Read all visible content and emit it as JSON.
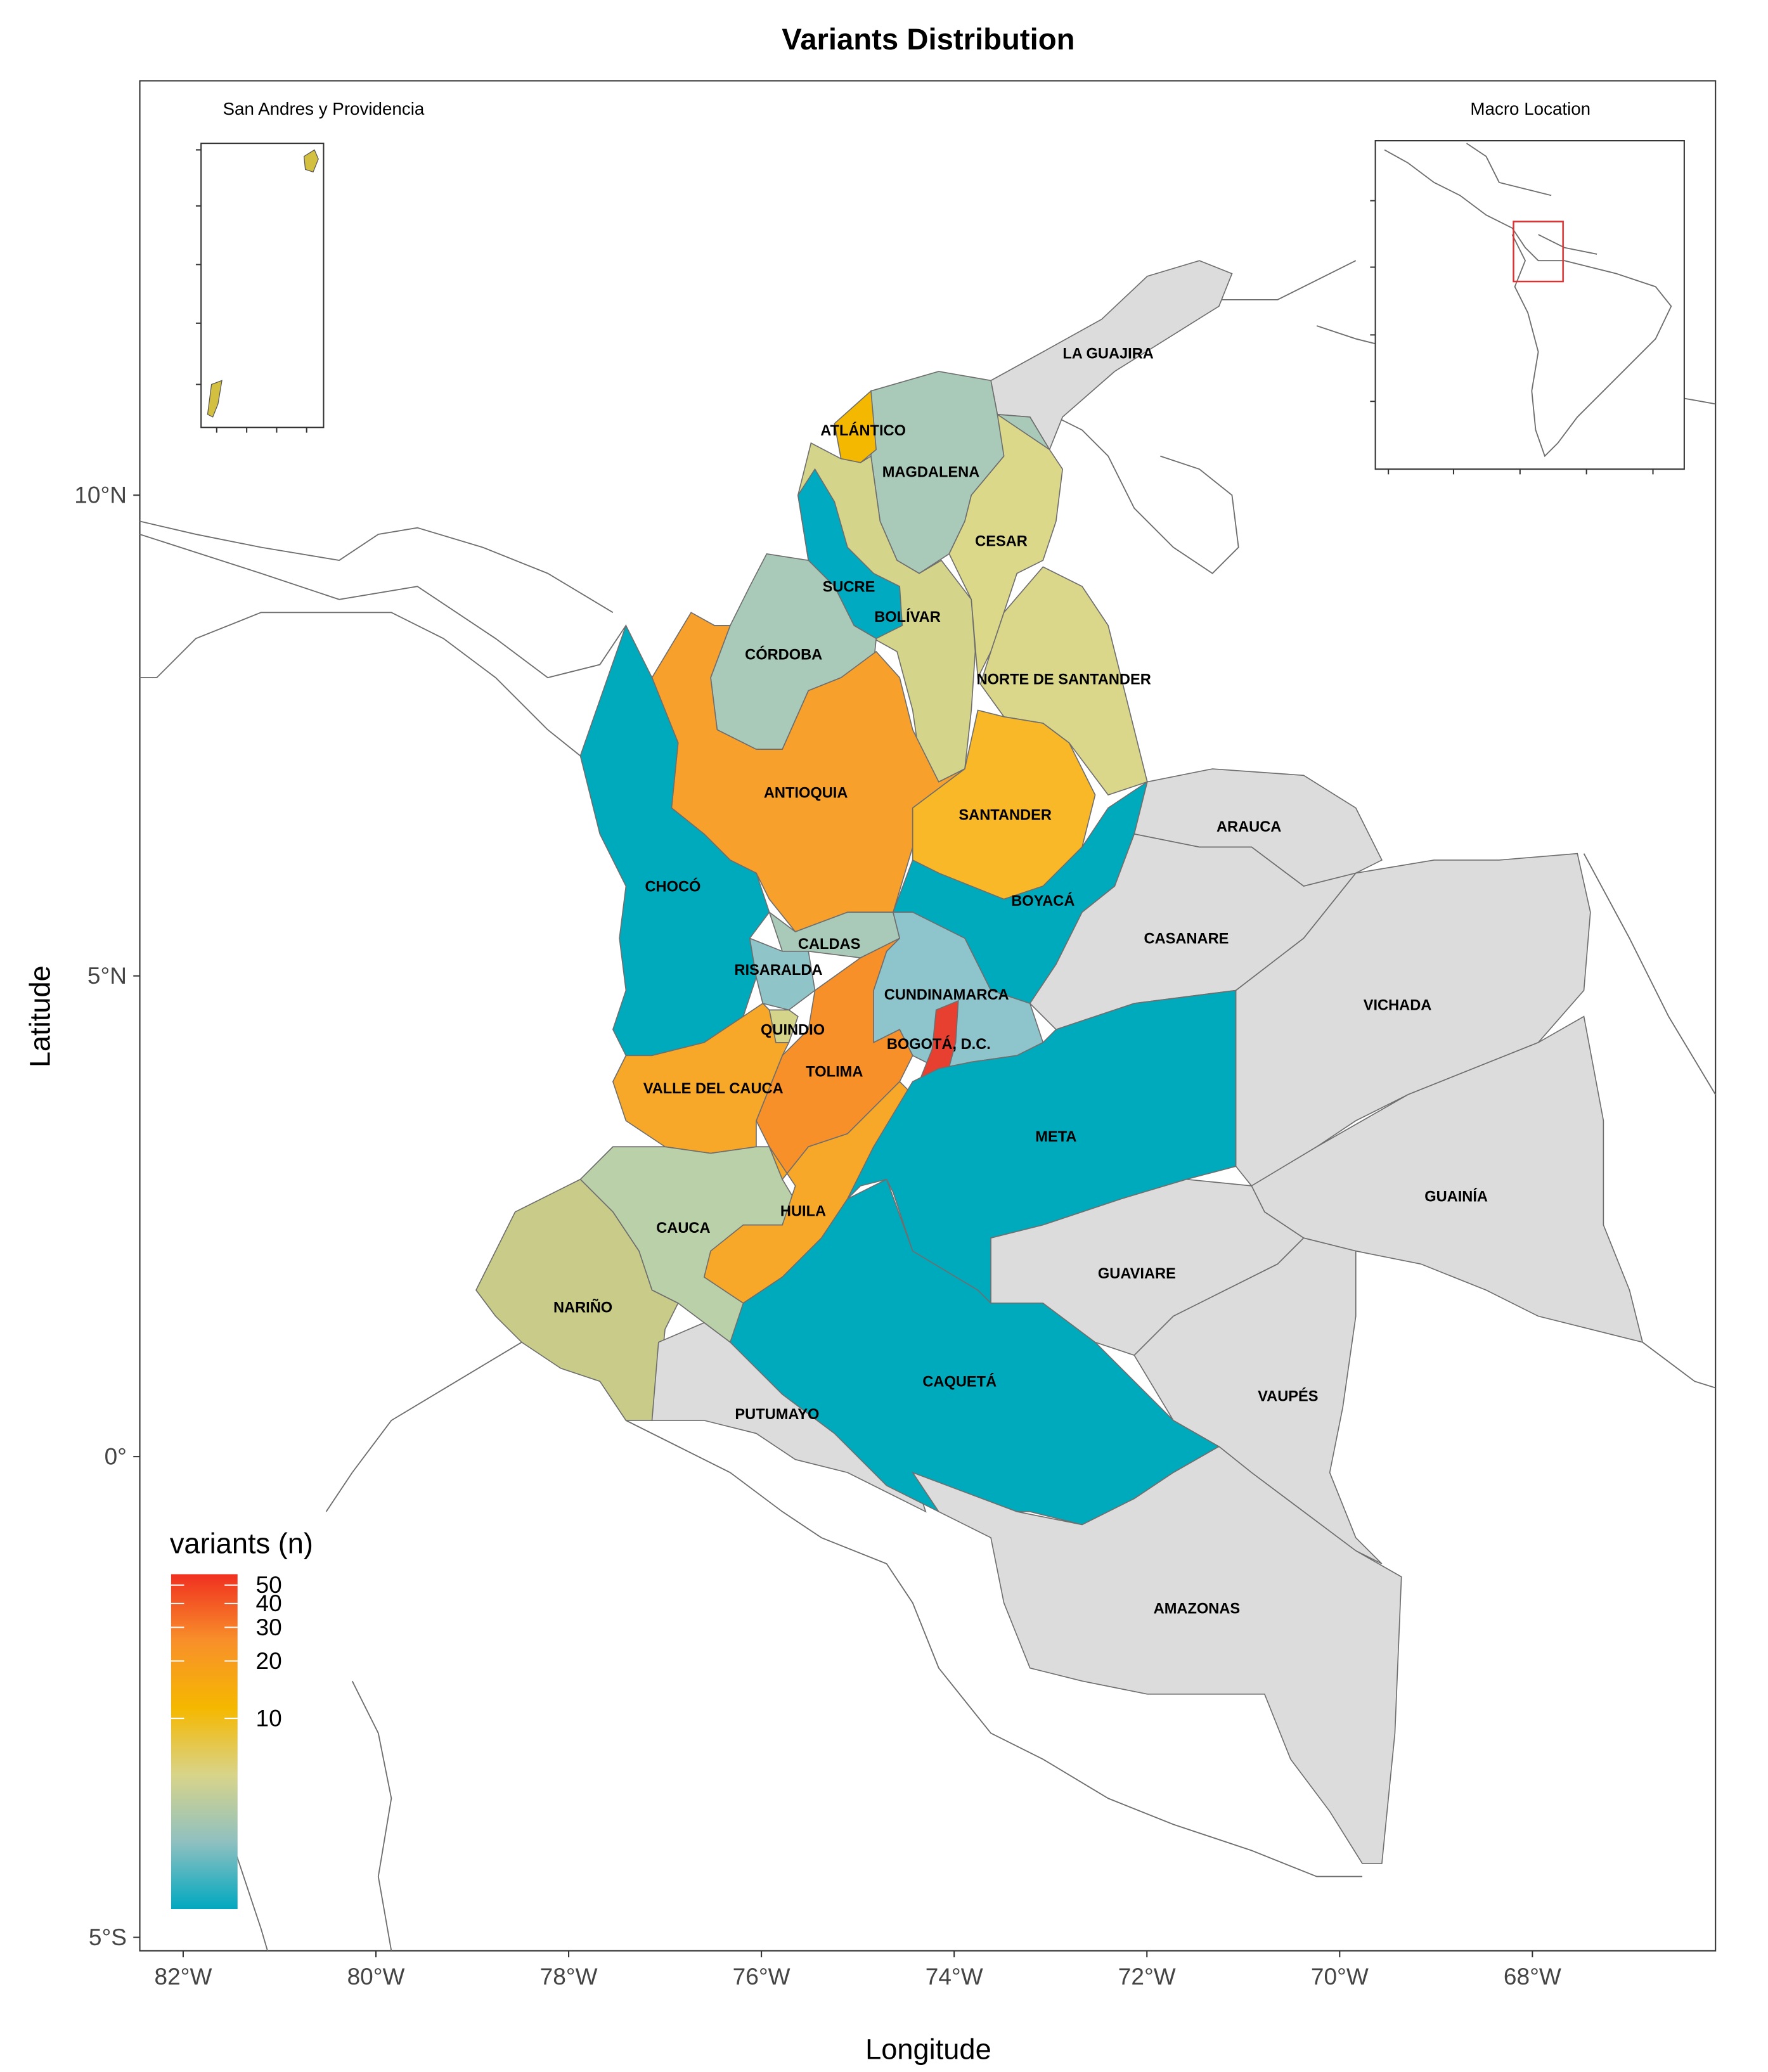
{
  "chart_data": {
    "type": "map",
    "title": "Variants Distribution",
    "xlabel": "Longitude",
    "ylabel": "Latitude",
    "xlim": [
      -82.45,
      -66.1
    ],
    "ylim": [
      -5.14,
      14.31
    ],
    "xticks": [
      {
        "value": -82,
        "label": "82°W"
      },
      {
        "value": -80,
        "label": "80°W"
      },
      {
        "value": -78,
        "label": "78°W"
      },
      {
        "value": -76,
        "label": "76°W"
      },
      {
        "value": -74,
        "label": "74°W"
      },
      {
        "value": -72,
        "label": "72°W"
      },
      {
        "value": -70,
        "label": "70°W"
      },
      {
        "value": -68,
        "label": "68°W"
      }
    ],
    "yticks": [
      {
        "value": -5,
        "label": "5°S"
      },
      {
        "value": 0,
        "label": "0°"
      },
      {
        "value": 5,
        "label": "5°N"
      },
      {
        "value": 10,
        "label": "10°N"
      }
    ],
    "regions": [
      {
        "name": "LA GUAJIRA",
        "color": "#dcdcdc"
      },
      {
        "name": "ATLÁNTICO",
        "color": "#f5b800"
      },
      {
        "name": "MAGDALENA",
        "color": "#a9c9b9"
      },
      {
        "name": "CESAR",
        "color": "#dcd88a"
      },
      {
        "name": "SUCRE",
        "color": "#00aac0"
      },
      {
        "name": "BOLÍVAR",
        "color": "#d4d48a"
      },
      {
        "name": "CÓRDOBA",
        "color": "#a9c9b9"
      },
      {
        "name": "NORTE DE SANTANDER",
        "color": "#dad68a"
      },
      {
        "name": "ANTIOQUIA",
        "color": "#f8a02c"
      },
      {
        "name": "SANTANDER",
        "color": "#f8b828"
      },
      {
        "name": "ARAUCA",
        "color": "#dcdcdc"
      },
      {
        "name": "CHOCÓ",
        "color": "#00aabd"
      },
      {
        "name": "BOYACÁ",
        "color": "#00aabd"
      },
      {
        "name": "CASANARE",
        "color": "#dcdcdc"
      },
      {
        "name": "CALDAS",
        "color": "#a9c9b9"
      },
      {
        "name": "RISARALDA",
        "color": "#8fc4c8"
      },
      {
        "name": "CUNDINAMARCA",
        "color": "#8ec4cc"
      },
      {
        "name": "VICHADA",
        "color": "#dcdcdc"
      },
      {
        "name": "QUINDIO",
        "color": "#d4d48a"
      },
      {
        "name": "BOGOTÁ, D.C.",
        "color": "#e84030"
      },
      {
        "name": "VALLE DEL CAUCA",
        "color": "#f8a828"
      },
      {
        "name": "TOLIMA",
        "color": "#f8902a"
      },
      {
        "name": "META",
        "color": "#00aabd"
      },
      {
        "name": "GUAINÍA",
        "color": "#dcdcdc"
      },
      {
        "name": "CAUCA",
        "color": "#b9d0a8"
      },
      {
        "name": "HUILA",
        "color": "#f8a828"
      },
      {
        "name": "GUAVIARE",
        "color": "#dcdcdc"
      },
      {
        "name": "NARIÑO",
        "color": "#c9cc88"
      },
      {
        "name": "CAQUETÁ",
        "color": "#00aabd"
      },
      {
        "name": "VAUPÉS",
        "color": "#dcdcdc"
      },
      {
        "name": "PUTUMAYO",
        "color": "#dcdcdc"
      },
      {
        "name": "AMAZONAS",
        "color": "#dcdcdc"
      }
    ],
    "legend": {
      "title": "variants (n)",
      "scale": "log",
      "lim": [
        1,
        57
      ],
      "ticks": [
        10,
        20,
        30,
        40,
        50
      ],
      "colors": [
        "#00a8c0",
        "#8fc0c0",
        "#d8d48a",
        "#f5b800",
        "#f8902a",
        "#f03020"
      ]
    },
    "insets": [
      {
        "title": "San Andres y Providencia",
        "color": "#d4c040"
      },
      {
        "title": "Macro Location",
        "highlight": "#e03030"
      }
    ]
  }
}
